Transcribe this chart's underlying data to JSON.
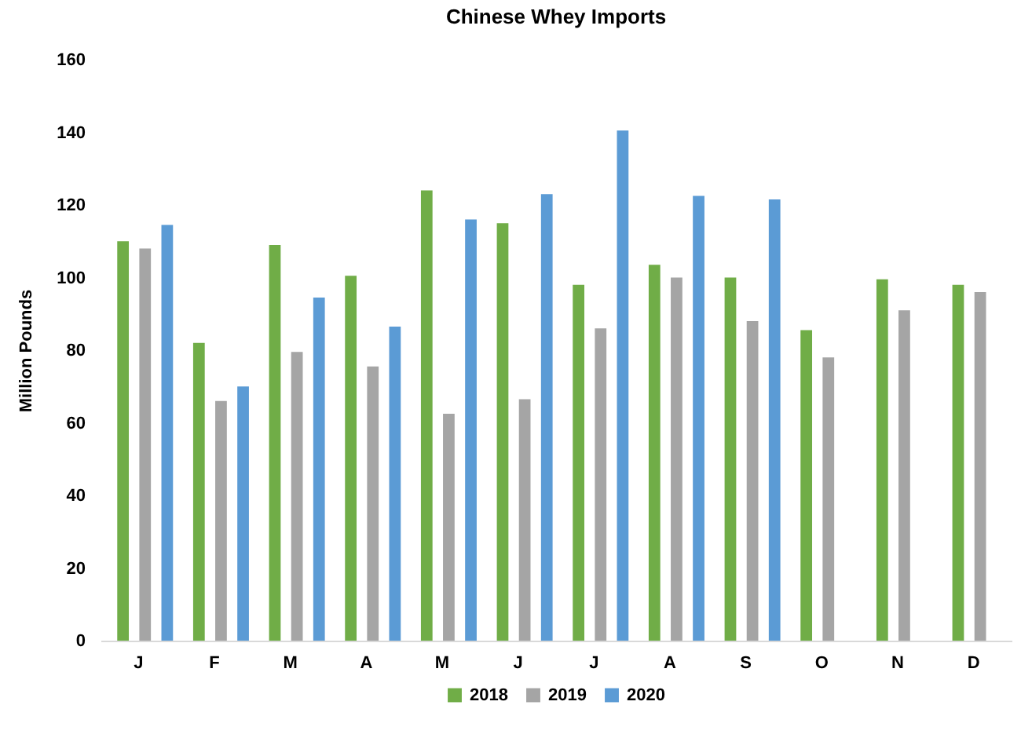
{
  "chart_data": {
    "type": "bar",
    "title": "Chinese Whey Imports",
    "ylabel": "Million Pounds",
    "categories": [
      "J",
      "F",
      "M",
      "A",
      "M",
      "J",
      "J",
      "A",
      "S",
      "O",
      "N",
      "D"
    ],
    "series": [
      {
        "name": "2018",
        "color": "#70ad47",
        "values": [
          110,
          82,
          109,
          100.5,
          124,
          115,
          98,
          103.5,
          100,
          85.5,
          99.5,
          98
        ]
      },
      {
        "name": "2019",
        "color": "#a5a5a5",
        "values": [
          108,
          66,
          79.5,
          75.5,
          62.5,
          66.5,
          86,
          100,
          88,
          78,
          91,
          96
        ]
      },
      {
        "name": "2020",
        "color": "#5b9bd5",
        "values": [
          114.5,
          70,
          94.5,
          86.5,
          116,
          123,
          140.5,
          122.5,
          121.5,
          null,
          null,
          null
        ]
      }
    ],
    "ylim": [
      0,
      160
    ],
    "yticks": [
      0,
      20,
      40,
      60,
      80,
      100,
      120,
      140,
      160
    ],
    "grid": false,
    "legend": "bottom"
  }
}
